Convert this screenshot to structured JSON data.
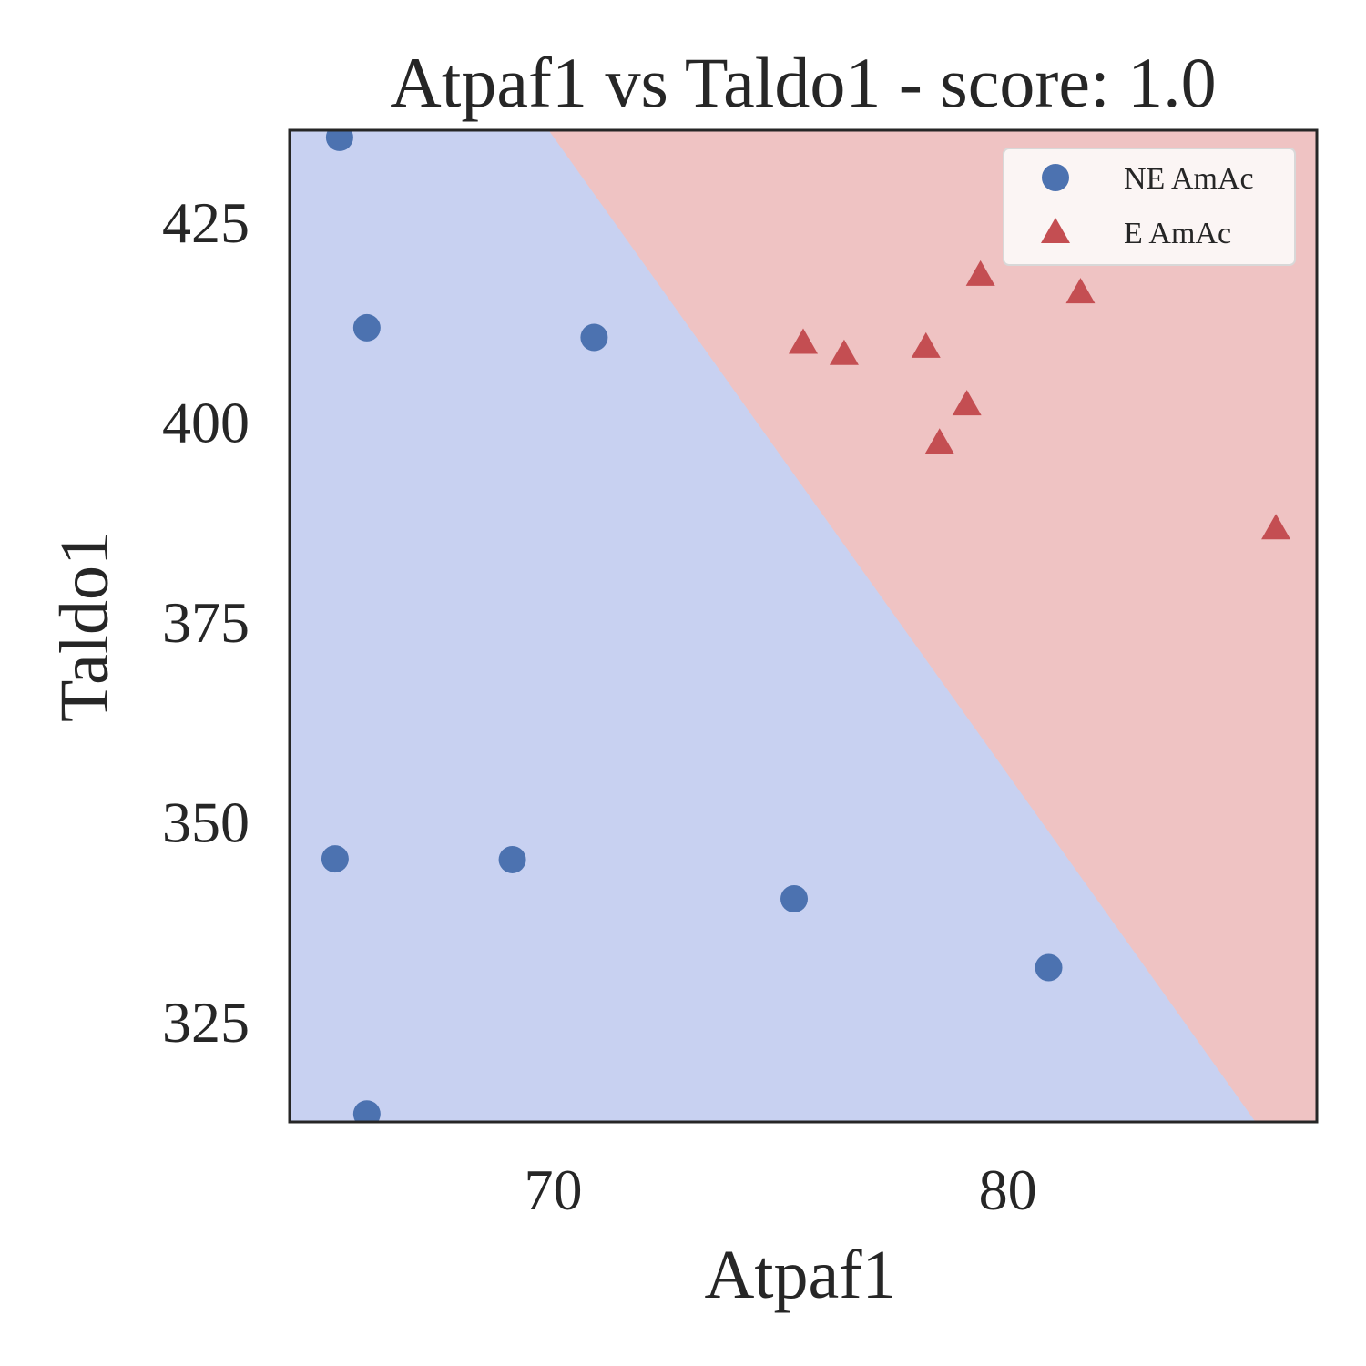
{
  "chart_data": {
    "type": "scatter",
    "title": "Atpaf1 vs Taldo1 - score: 1.0",
    "xlabel": "Atpaf1",
    "ylabel": "Taldo1",
    "xlim": [
      64.2,
      86.8
    ],
    "ylim": [
      312.5,
      436.5
    ],
    "xticks": [
      70,
      80
    ],
    "xtick_labels": [
      "70",
      "80"
    ],
    "yticks": [
      325,
      350,
      375,
      400,
      425
    ],
    "ytick_labels": [
      "325",
      "350",
      "375",
      "400",
      "425"
    ],
    "grid": false,
    "legend_position": "top-right",
    "decision_regions": {
      "boundary_line": [
        [
          69.9,
          436.5
        ],
        [
          85.45,
          312.5
        ]
      ],
      "left_class": "NE AmAc",
      "right_class": "E AmAc",
      "left_color": "#c8d1f1",
      "right_color": "#efc3c3"
    },
    "series": [
      {
        "name": "NE AmAc",
        "marker": "circle",
        "color": "#4c72b0",
        "points": [
          [
            65.3,
            435.6
          ],
          [
            65.9,
            411.8
          ],
          [
            70.9,
            410.6
          ],
          [
            65.2,
            345.4
          ],
          [
            69.1,
            345.3
          ],
          [
            75.3,
            340.4
          ],
          [
            80.9,
            331.8
          ],
          [
            65.9,
            313.5
          ]
        ]
      },
      {
        "name": "E AmAc",
        "marker": "triangle",
        "color": "#c44e52",
        "points": [
          [
            75.5,
            409.8
          ],
          [
            76.4,
            408.4
          ],
          [
            78.2,
            409.3
          ],
          [
            79.4,
            418.3
          ],
          [
            81.6,
            416.1
          ],
          [
            79.1,
            402.1
          ],
          [
            78.5,
            397.3
          ],
          [
            85.9,
            386.6
          ]
        ]
      }
    ]
  }
}
